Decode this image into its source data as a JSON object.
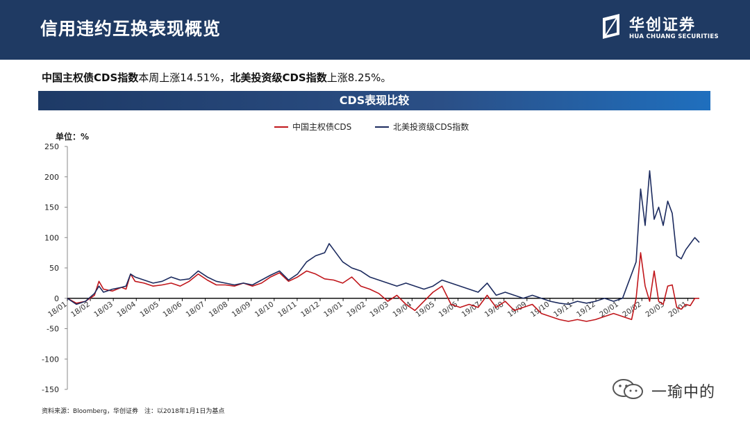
{
  "header": {
    "title": "信用违约互换表现概览",
    "logo_cn": "华创证券",
    "logo_en": "HUA CHUANG SECURITIES",
    "colors": {
      "bar": "#1f3a63"
    }
  },
  "summary": {
    "bold1": "中国主权债CDS指数",
    "text1": "本周上涨14.51%，",
    "bold2": "北美投资级CDS指数",
    "text2": "上涨8.25%。"
  },
  "chart_banner": "CDS表现比较",
  "chart_data": {
    "type": "line",
    "unit_label": "单位：%",
    "ylim": [
      -150,
      250
    ],
    "yticks": [
      -150,
      -100,
      -50,
      0,
      50,
      100,
      150,
      200,
      250
    ],
    "xticks": [
      "18/01",
      "18/02",
      "18/03",
      "18/04",
      "18/05",
      "18/06",
      "18/07",
      "18/08",
      "18/09",
      "18/10",
      "18/11",
      "18/12",
      "19/01",
      "19/02",
      "19/03",
      "19/04",
      "19/05",
      "19/06",
      "19/07",
      "19/08",
      "19/09",
      "19/10",
      "19/11",
      "19/12",
      "20/01",
      "20/02",
      "20/03",
      "20/01"
    ],
    "x_range_weeks": [
      0,
      117
    ],
    "grid": false,
    "legend_position": "top-center",
    "series": [
      {
        "name": "中国主权债CDS",
        "color": "#c0151a",
        "points": [
          [
            0,
            0
          ],
          [
            2,
            -8
          ],
          [
            4,
            -5
          ],
          [
            6,
            5
          ],
          [
            7,
            28
          ],
          [
            8,
            15
          ],
          [
            10,
            12
          ],
          [
            12,
            18
          ],
          [
            13,
            15
          ],
          [
            14,
            40
          ],
          [
            15,
            28
          ],
          [
            17,
            25
          ],
          [
            19,
            20
          ],
          [
            21,
            22
          ],
          [
            23,
            25
          ],
          [
            25,
            20
          ],
          [
            27,
            28
          ],
          [
            29,
            40
          ],
          [
            31,
            30
          ],
          [
            33,
            22
          ],
          [
            35,
            22
          ],
          [
            37,
            20
          ],
          [
            39,
            25
          ],
          [
            41,
            20
          ],
          [
            43,
            25
          ],
          [
            45,
            35
          ],
          [
            47,
            42
          ],
          [
            49,
            28
          ],
          [
            51,
            35
          ],
          [
            53,
            45
          ],
          [
            55,
            40
          ],
          [
            57,
            32
          ],
          [
            59,
            30
          ],
          [
            61,
            25
          ],
          [
            63,
            35
          ],
          [
            65,
            20
          ],
          [
            67,
            15
          ],
          [
            69,
            8
          ],
          [
            71,
            -5
          ],
          [
            73,
            5
          ],
          [
            75,
            -10
          ],
          [
            77,
            -20
          ],
          [
            79,
            -5
          ],
          [
            81,
            10
          ],
          [
            83,
            20
          ],
          [
            85,
            -10
          ],
          [
            87,
            -15
          ],
          [
            89,
            -10
          ],
          [
            91,
            -15
          ],
          [
            93,
            5
          ],
          [
            95,
            -15
          ],
          [
            97,
            -5
          ],
          [
            99,
            -20
          ],
          [
            101,
            -15
          ],
          [
            103,
            -10
          ],
          [
            105,
            -25
          ],
          [
            107,
            -30
          ],
          [
            109,
            -35
          ],
          [
            111,
            -38
          ],
          [
            113,
            -35
          ],
          [
            115,
            -38
          ],
          [
            117,
            -35
          ],
          [
            119,
            -30
          ],
          [
            121,
            -25
          ],
          [
            123,
            -30
          ],
          [
            125,
            -35
          ],
          [
            126,
            0
          ],
          [
            127,
            75
          ],
          [
            128,
            20
          ],
          [
            129,
            -5
          ],
          [
            130,
            45
          ],
          [
            131,
            -5
          ],
          [
            132,
            -10
          ],
          [
            133,
            20
          ],
          [
            134,
            22
          ],
          [
            135,
            -15
          ],
          [
            136,
            -18
          ],
          [
            137,
            -10
          ],
          [
            138,
            -12
          ],
          [
            139,
            0
          ],
          [
            140,
            0
          ]
        ]
      },
      {
        "name": "北美投资级CDS指数",
        "color": "#1b2a5e",
        "points": [
          [
            0,
            0
          ],
          [
            2,
            -10
          ],
          [
            4,
            -5
          ],
          [
            6,
            8
          ],
          [
            7,
            20
          ],
          [
            8,
            10
          ],
          [
            10,
            15
          ],
          [
            12,
            18
          ],
          [
            13,
            20
          ],
          [
            14,
            40
          ],
          [
            15,
            35
          ],
          [
            17,
            30
          ],
          [
            19,
            25
          ],
          [
            21,
            28
          ],
          [
            23,
            35
          ],
          [
            25,
            30
          ],
          [
            27,
            32
          ],
          [
            29,
            45
          ],
          [
            31,
            35
          ],
          [
            33,
            28
          ],
          [
            35,
            25
          ],
          [
            37,
            22
          ],
          [
            39,
            25
          ],
          [
            41,
            22
          ],
          [
            43,
            30
          ],
          [
            45,
            38
          ],
          [
            47,
            45
          ],
          [
            49,
            30
          ],
          [
            51,
            40
          ],
          [
            53,
            60
          ],
          [
            55,
            70
          ],
          [
            57,
            75
          ],
          [
            58,
            90
          ],
          [
            59,
            80
          ],
          [
            61,
            60
          ],
          [
            63,
            50
          ],
          [
            65,
            45
          ],
          [
            67,
            35
          ],
          [
            69,
            30
          ],
          [
            71,
            25
          ],
          [
            73,
            20
          ],
          [
            75,
            25
          ],
          [
            77,
            20
          ],
          [
            79,
            15
          ],
          [
            81,
            20
          ],
          [
            83,
            30
          ],
          [
            85,
            25
          ],
          [
            87,
            20
          ],
          [
            89,
            15
          ],
          [
            91,
            10
          ],
          [
            93,
            25
          ],
          [
            95,
            5
          ],
          [
            97,
            10
          ],
          [
            99,
            5
          ],
          [
            101,
            0
          ],
          [
            103,
            5
          ],
          [
            105,
            0
          ],
          [
            107,
            -5
          ],
          [
            109,
            -8
          ],
          [
            111,
            -10
          ],
          [
            113,
            -5
          ],
          [
            115,
            -8
          ],
          [
            117,
            -5
          ],
          [
            119,
            0
          ],
          [
            121,
            -5
          ],
          [
            123,
            0
          ],
          [
            124,
            20
          ],
          [
            125,
            40
          ],
          [
            126,
            60
          ],
          [
            127,
            180
          ],
          [
            128,
            120
          ],
          [
            129,
            210
          ],
          [
            130,
            130
          ],
          [
            131,
            150
          ],
          [
            132,
            120
          ],
          [
            133,
            160
          ],
          [
            134,
            140
          ],
          [
            135,
            70
          ],
          [
            136,
            65
          ],
          [
            137,
            80
          ],
          [
            138,
            90
          ],
          [
            139,
            100
          ],
          [
            140,
            92
          ]
        ]
      }
    ]
  },
  "source": "资料来源：Bloomberg，华创证券　注：以2018年1月1日为基点",
  "watermark": "一瑜中的"
}
